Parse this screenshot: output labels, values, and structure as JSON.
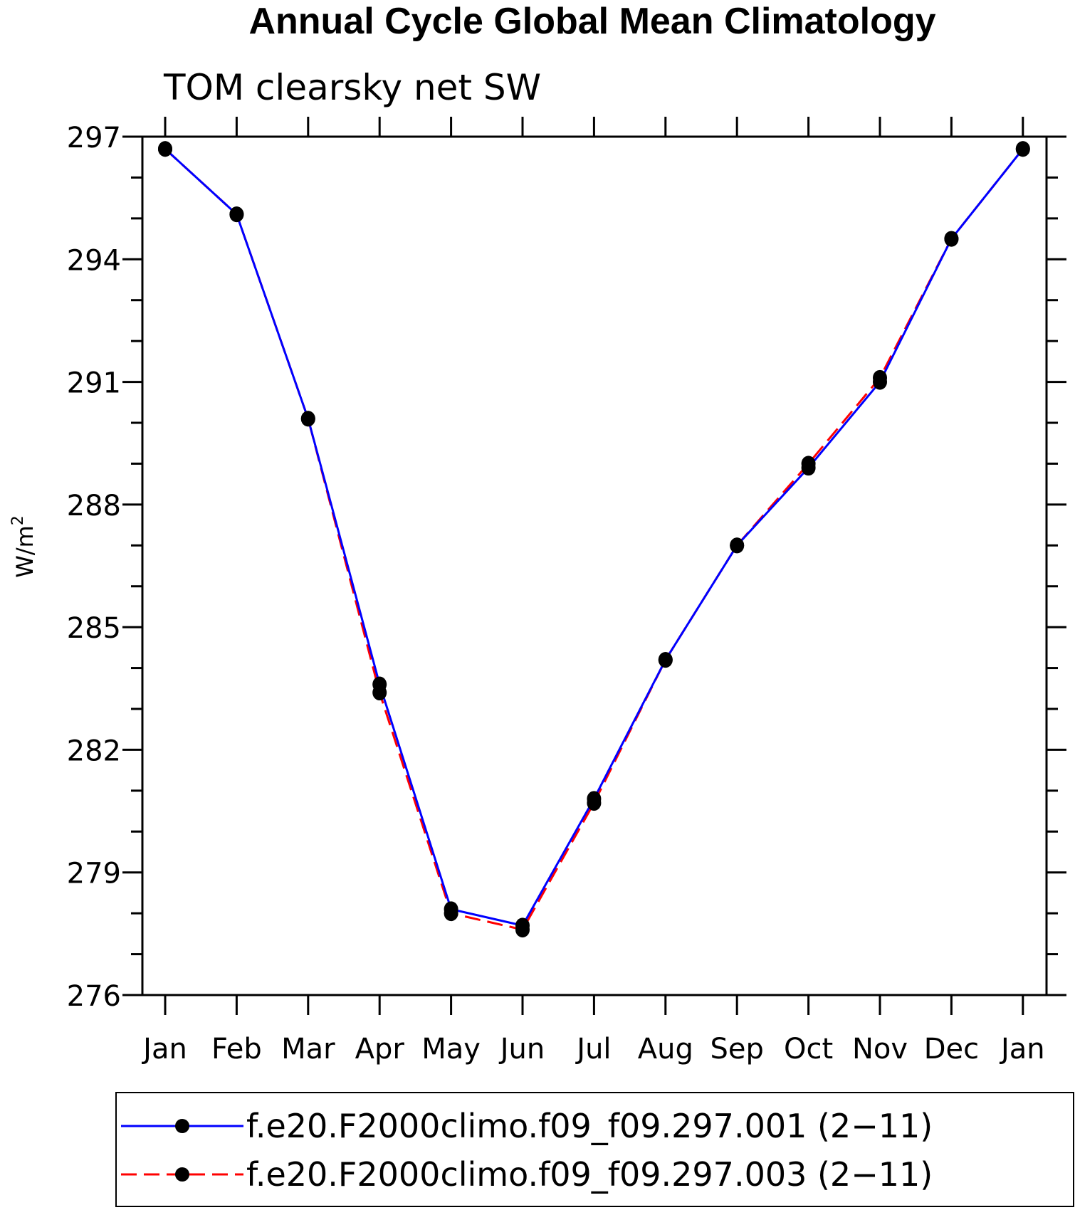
{
  "chart_data": {
    "type": "line",
    "title": "Annual Cycle Global Mean Climatology",
    "subtitle": "TOM clearsky net SW",
    "ylabel_base": "W/m",
    "ylabel_sup": "2",
    "categories": [
      "Jan",
      "Feb",
      "Mar",
      "Apr",
      "May",
      "Jun",
      "Jul",
      "Aug",
      "Sep",
      "Oct",
      "Nov",
      "Dec",
      "Jan"
    ],
    "ylim": [
      276,
      297
    ],
    "yticks": [
      "276",
      "279",
      "282",
      "285",
      "288",
      "291",
      "294",
      "297"
    ],
    "grid": false,
    "legend_position": "bottom",
    "series": [
      {
        "name": "f.e20.F2000climo.f09_f09.297.001 (2−11)",
        "color": "#0000ff",
        "dash": "solid",
        "values": [
          296.7,
          295.1,
          290.1,
          283.6,
          278.1,
          277.7,
          280.8,
          284.2,
          287.0,
          288.9,
          291.0,
          294.5,
          296.7
        ]
      },
      {
        "name": "f.e20.F2000climo.f09_f09.297.003 (2−11)",
        "color": "#ff0000",
        "dash": "dashed",
        "values": [
          296.7,
          295.1,
          290.1,
          283.4,
          278.0,
          277.6,
          280.7,
          284.2,
          287.0,
          289.0,
          291.1,
          294.5,
          296.7
        ]
      }
    ]
  }
}
